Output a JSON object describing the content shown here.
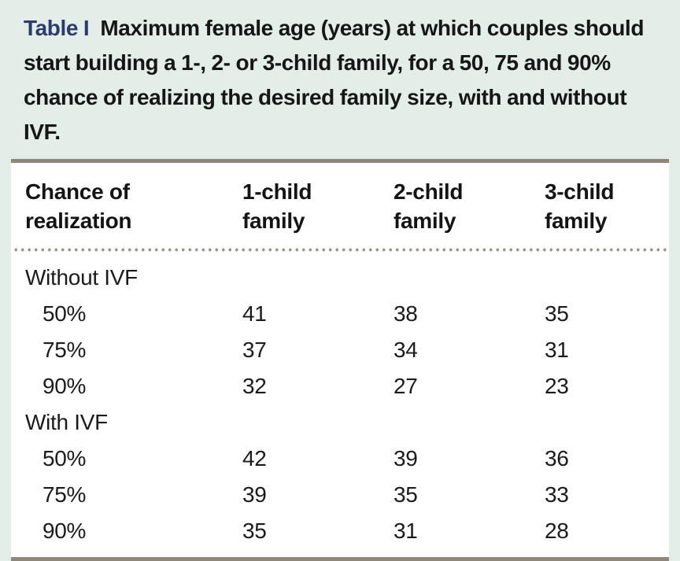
{
  "page": {
    "background_color": "#e3eee9",
    "panel_color": "#ffffff",
    "rule_color": "#8f8779",
    "dot_color": "#9b9287",
    "caption_label_color": "#2d3c6e"
  },
  "title": {
    "label": "Table I",
    "text": "Maximum female age (years) at which couples should start building a 1-, 2- or 3-child family, for a 50, 75 and 90% chance of realizing the desired family size, with and without IVF."
  },
  "table": {
    "columns": [
      "Chance of realization",
      "1-child family",
      "2-child family",
      "3-child family"
    ],
    "sections": [
      {
        "label": "Without IVF",
        "rows": [
          {
            "chance": "50%",
            "values": [
              "41",
              "38",
              "35"
            ]
          },
          {
            "chance": "75%",
            "values": [
              "37",
              "34",
              "31"
            ]
          },
          {
            "chance": "90%",
            "values": [
              "32",
              "27",
              "23"
            ]
          }
        ]
      },
      {
        "label": "With IVF",
        "rows": [
          {
            "chance": "50%",
            "values": [
              "42",
              "39",
              "36"
            ]
          },
          {
            "chance": "75%",
            "values": [
              "39",
              "35",
              "33"
            ]
          },
          {
            "chance": "90%",
            "values": [
              "35",
              "31",
              "28"
            ]
          }
        ]
      }
    ]
  },
  "chart_data": {
    "type": "table",
    "title": "Table I Maximum female age (years) at which couples should start building a 1-, 2- or 3-child family, for a 50, 75 and 90% chance of realizing the desired family size, with and without IVF.",
    "columns": [
      "Chance of realization",
      "1-child family",
      "2-child family",
      "3-child family"
    ],
    "rows": [
      [
        "Without IVF",
        "",
        "",
        ""
      ],
      [
        "50%",
        41,
        38,
        35
      ],
      [
        "75%",
        37,
        34,
        31
      ],
      [
        "90%",
        32,
        27,
        23
      ],
      [
        "With IVF",
        "",
        "",
        ""
      ],
      [
        "50%",
        42,
        39,
        36
      ],
      [
        "75%",
        39,
        35,
        33
      ],
      [
        "90%",
        35,
        31,
        28
      ]
    ]
  }
}
